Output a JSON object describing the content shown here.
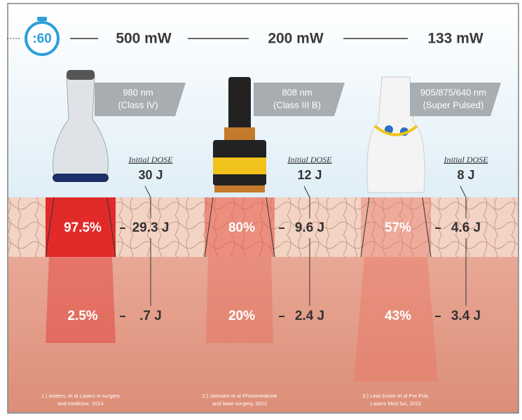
{
  "timer": ":60",
  "columns": [
    {
      "power": "500 mW",
      "wavelength": "980 nm",
      "class": "(Class IV)",
      "dose_label": "Initial DOSE",
      "dose": "30 J",
      "skin_percent": "97.5%",
      "skin_dose": "29.3 J",
      "deep_percent": "2.5%",
      "deep_dose": ".7 J",
      "citation": [
        "1.) Anders, et al Lasers in surgery",
        "and medicine, 2014"
      ]
    },
    {
      "power": "200 mW",
      "wavelength": "808 nm",
      "class": "(Class III B)",
      "dose_label": "Initial DOSE",
      "dose": "12 J",
      "skin_percent": "80%",
      "skin_dose": "9.6 J",
      "deep_percent": "20%",
      "deep_dose": "2.4 J",
      "citation": [
        "2.) Joensen et al Photomedicine",
        "and laser surgery, 2012"
      ]
    },
    {
      "power": "133 mW",
      "wavelength": "905/875/640 nm",
      "class": "(Super Pulsed)",
      "dose_label": "Initial DOSE",
      "dose": "8 J",
      "skin_percent": "57%",
      "skin_dose": "4.6 J",
      "deep_percent": "43%",
      "deep_dose": "3.4 J",
      "citation": [
        "3.) Leal-Junior et al Pre Pub,",
        "Lasers Med Sci, 2015"
      ]
    }
  ]
}
